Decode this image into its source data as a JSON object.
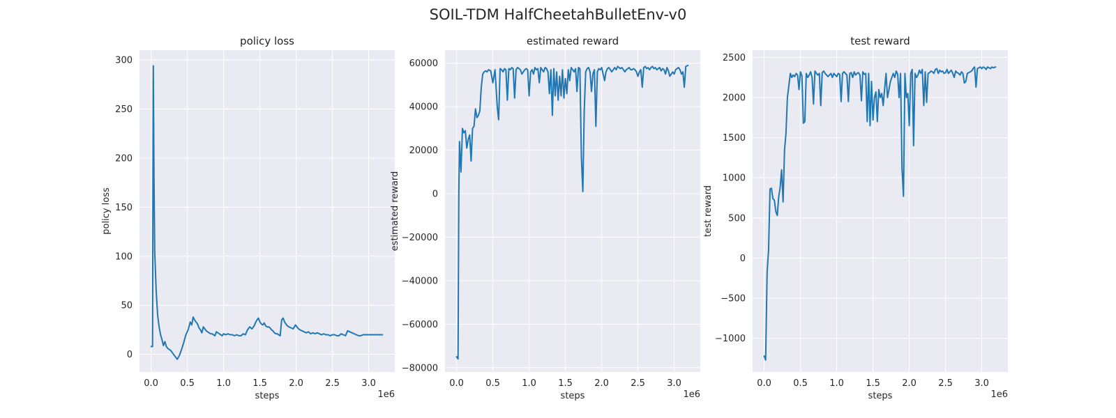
{
  "figure_title": "SOIL-TDM HalfCheetahBulletEnv-v0",
  "line_color": "#1f77b4",
  "chart_data": [
    {
      "type": "line",
      "title": "policy loss",
      "xlabel": "steps",
      "ylabel": "policy loss",
      "x_offset_label": "1e6",
      "xlim": [
        -0.16,
        3.36
      ],
      "ylim": [
        -18,
        310
      ],
      "xticks": [
        0.0,
        0.5,
        1.0,
        1.5,
        2.0,
        2.5,
        3.0
      ],
      "xtick_labels": [
        "0.0",
        "0.5",
        "1.0",
        "1.5",
        "2.0",
        "2.5",
        "3.0"
      ],
      "yticks": [
        0,
        50,
        100,
        150,
        200,
        250,
        300
      ],
      "ytick_labels": [
        "0",
        "50",
        "100",
        "150",
        "200",
        "250",
        "300"
      ],
      "grid": true,
      "series": [
        {
          "x": [
            0.0,
            0.02,
            0.03,
            0.04,
            0.05,
            0.07,
            0.09,
            0.11,
            0.13,
            0.15,
            0.17,
            0.19,
            0.21,
            0.23,
            0.25,
            0.27,
            0.3,
            0.33,
            0.36,
            0.39,
            0.42,
            0.45,
            0.48,
            0.51,
            0.54,
            0.56,
            0.58,
            0.6,
            0.62,
            0.64,
            0.66,
            0.68,
            0.7,
            0.72,
            0.74,
            0.76,
            0.78,
            0.8,
            0.82,
            0.84,
            0.86,
            0.88,
            0.9,
            0.92,
            0.94,
            0.96,
            0.98,
            1.0,
            1.03,
            1.06,
            1.09,
            1.12,
            1.15,
            1.18,
            1.21,
            1.24,
            1.27,
            1.3,
            1.33,
            1.36,
            1.39,
            1.42,
            1.45,
            1.48,
            1.5,
            1.52,
            1.54,
            1.56,
            1.58,
            1.6,
            1.62,
            1.64,
            1.66,
            1.68,
            1.7,
            1.72,
            1.74,
            1.76,
            1.78,
            1.8,
            1.82,
            1.84,
            1.86,
            1.88,
            1.9,
            1.93,
            1.96,
            1.99,
            2.02,
            2.05,
            2.08,
            2.11,
            2.14,
            2.17,
            2.2,
            2.23,
            2.26,
            2.29,
            2.32,
            2.35,
            2.38,
            2.41,
            2.44,
            2.47,
            2.5,
            2.53,
            2.56,
            2.59,
            2.62,
            2.65,
            2.68,
            2.71,
            2.74,
            2.77,
            2.8,
            2.83,
            2.86,
            2.89,
            2.92,
            2.95,
            2.98,
            3.01,
            3.04,
            3.07,
            3.1,
            3.13,
            3.16,
            3.19
          ],
          "y": [
            8,
            8,
            294,
            180,
            105,
            65,
            40,
            28,
            20,
            15,
            9,
            13,
            8,
            6,
            5,
            4,
            1,
            -2,
            -5,
            -1,
            5,
            12,
            20,
            25,
            33,
            30,
            38,
            35,
            33,
            31,
            27,
            25,
            22,
            28,
            26,
            24,
            23,
            22,
            21,
            21,
            20,
            19,
            23,
            22,
            21,
            20,
            19,
            21,
            20,
            21,
            20,
            20,
            19,
            20,
            19,
            19,
            21,
            20,
            25,
            28,
            26,
            29,
            34,
            37,
            33,
            31,
            30,
            32,
            29,
            28,
            28,
            27,
            25,
            24,
            22,
            21,
            21,
            20,
            19,
            35,
            37,
            33,
            31,
            29,
            28,
            27,
            26,
            30,
            27,
            25,
            24,
            23,
            22,
            23,
            21,
            22,
            21,
            22,
            21,
            20,
            21,
            20,
            20,
            19,
            20,
            20,
            19,
            19,
            21,
            20,
            19,
            24,
            23,
            22,
            21,
            20,
            19,
            19,
            20,
            20,
            20,
            20,
            20,
            20,
            20,
            20,
            20,
            20
          ]
        }
      ]
    },
    {
      "type": "line",
      "title": "estimated reward",
      "xlabel": "steps",
      "ylabel": "estimated reward",
      "x_offset_label": "1e6",
      "xlim": [
        -0.16,
        3.36
      ],
      "ylim": [
        -82000,
        66000
      ],
      "xticks": [
        0.0,
        0.5,
        1.0,
        1.5,
        2.0,
        2.5,
        3.0
      ],
      "xtick_labels": [
        "0.0",
        "0.5",
        "1.0",
        "1.5",
        "2.0",
        "2.5",
        "3.0"
      ],
      "yticks": [
        -80000,
        -60000,
        -40000,
        -20000,
        0,
        20000,
        40000,
        60000
      ],
      "ytick_labels": [
        "−80000",
        "−60000",
        "−40000",
        "−20000",
        "0",
        "20000",
        "40000",
        "60000"
      ],
      "grid": true,
      "series": [
        {
          "x": [
            0.0,
            0.02,
            0.03,
            0.04,
            0.06,
            0.08,
            0.1,
            0.12,
            0.14,
            0.16,
            0.18,
            0.2,
            0.22,
            0.24,
            0.26,
            0.28,
            0.3,
            0.32,
            0.34,
            0.36,
            0.38,
            0.4,
            0.42,
            0.44,
            0.47,
            0.5,
            0.53,
            0.56,
            0.58,
            0.6,
            0.62,
            0.64,
            0.66,
            0.68,
            0.7,
            0.72,
            0.74,
            0.76,
            0.78,
            0.8,
            0.82,
            0.84,
            0.86,
            0.88,
            0.9,
            0.92,
            0.94,
            0.96,
            0.98,
            1.0,
            1.02,
            1.04,
            1.06,
            1.08,
            1.1,
            1.12,
            1.14,
            1.16,
            1.18,
            1.2,
            1.22,
            1.24,
            1.26,
            1.28,
            1.3,
            1.32,
            1.34,
            1.36,
            1.38,
            1.4,
            1.42,
            1.44,
            1.46,
            1.48,
            1.5,
            1.52,
            1.54,
            1.56,
            1.58,
            1.6,
            1.62,
            1.64,
            1.66,
            1.68,
            1.7,
            1.72,
            1.74,
            1.76,
            1.78,
            1.8,
            1.82,
            1.84,
            1.86,
            1.88,
            1.9,
            1.92,
            1.94,
            1.96,
            1.98,
            2.0,
            2.02,
            2.04,
            2.06,
            2.08,
            2.1,
            2.12,
            2.14,
            2.16,
            2.18,
            2.2,
            2.22,
            2.24,
            2.26,
            2.28,
            2.3,
            2.32,
            2.34,
            2.36,
            2.38,
            2.4,
            2.42,
            2.44,
            2.46,
            2.48,
            2.5,
            2.52,
            2.54,
            2.56,
            2.58,
            2.6,
            2.62,
            2.64,
            2.66,
            2.68,
            2.7,
            2.72,
            2.74,
            2.76,
            2.78,
            2.8,
            2.82,
            2.84,
            2.86,
            2.88,
            2.9,
            2.92,
            2.94,
            2.96,
            2.98,
            3.0,
            3.02,
            3.04,
            3.06,
            3.08,
            3.1,
            3.12,
            3.14,
            3.16,
            3.19
          ],
          "y": [
            -75000,
            -76000,
            0,
            24000,
            10000,
            30000,
            28000,
            29000,
            21000,
            25000,
            27000,
            15000,
            30000,
            31000,
            39000,
            35000,
            36000,
            38000,
            49000,
            55000,
            56000,
            56500,
            56000,
            57000,
            56500,
            51000,
            57000,
            40000,
            34000,
            57500,
            57000,
            56000,
            57500,
            57000,
            43000,
            57500,
            57000,
            58000,
            57500,
            44000,
            57000,
            58000,
            57500,
            57000,
            55000,
            56000,
            57000,
            57500,
            57000,
            45000,
            56000,
            57000,
            55000,
            58000,
            57000,
            57500,
            51000,
            58000,
            57000,
            56000,
            58000,
            57500,
            56000,
            46000,
            57000,
            36000,
            57500,
            45000,
            56000,
            43000,
            54000,
            45000,
            57000,
            44000,
            53000,
            46000,
            57000,
            52000,
            58000,
            57000,
            56000,
            57500,
            47000,
            58000,
            57500,
            17000,
            1000,
            38000,
            56000,
            57500,
            58000,
            56000,
            47000,
            55000,
            57000,
            31000,
            56000,
            57500,
            57000,
            58000,
            55000,
            52000,
            56000,
            57500,
            58000,
            57000,
            56000,
            57000,
            58000,
            57000,
            58500,
            58000,
            57500,
            58000,
            57000,
            56000,
            57000,
            57500,
            58000,
            57000,
            57000,
            57500,
            57000,
            56000,
            54000,
            56000,
            57000,
            49000,
            58000,
            58500,
            57500,
            58000,
            57000,
            58000,
            58500,
            57500,
            58000,
            57000,
            57500,
            58000,
            56500,
            57500,
            57000,
            55000,
            58000,
            56500,
            54000,
            55000,
            56000,
            55000,
            57000,
            57500,
            58000,
            57000,
            55000,
            56000,
            49000,
            58500,
            59000
          ]
        }
      ]
    },
    {
      "type": "line",
      "title": "test reward",
      "xlabel": "steps",
      "ylabel": "test reward",
      "x_offset_label": "1e6",
      "xlim": [
        -0.16,
        3.36
      ],
      "ylim": [
        -1420,
        2590
      ],
      "xticks": [
        0.0,
        0.5,
        1.0,
        1.5,
        2.0,
        2.5,
        3.0
      ],
      "xtick_labels": [
        "0.0",
        "0.5",
        "1.0",
        "1.5",
        "2.0",
        "2.5",
        "3.0"
      ],
      "yticks": [
        -1000,
        -500,
        0,
        500,
        1000,
        1500,
        2000,
        2500
      ],
      "ytick_labels": [
        "−1000",
        "−500",
        "0",
        "500",
        "1000",
        "1500",
        "2000",
        "2500"
      ],
      "grid": true,
      "series": [
        {
          "x": [
            0.0,
            0.02,
            0.04,
            0.06,
            0.08,
            0.1,
            0.12,
            0.14,
            0.16,
            0.18,
            0.2,
            0.22,
            0.24,
            0.26,
            0.28,
            0.3,
            0.32,
            0.34,
            0.36,
            0.38,
            0.4,
            0.42,
            0.44,
            0.46,
            0.48,
            0.5,
            0.52,
            0.54,
            0.56,
            0.58,
            0.6,
            0.62,
            0.64,
            0.66,
            0.68,
            0.7,
            0.72,
            0.74,
            0.76,
            0.78,
            0.8,
            0.82,
            0.84,
            0.86,
            0.88,
            0.9,
            0.92,
            0.94,
            0.96,
            0.98,
            1.0,
            1.02,
            1.04,
            1.06,
            1.08,
            1.1,
            1.12,
            1.14,
            1.16,
            1.18,
            1.2,
            1.22,
            1.24,
            1.26,
            1.28,
            1.3,
            1.32,
            1.34,
            1.36,
            1.38,
            1.4,
            1.42,
            1.44,
            1.46,
            1.48,
            1.5,
            1.52,
            1.54,
            1.56,
            1.58,
            1.6,
            1.62,
            1.64,
            1.66,
            1.68,
            1.7,
            1.72,
            1.74,
            1.76,
            1.78,
            1.8,
            1.82,
            1.84,
            1.86,
            1.88,
            1.9,
            1.92,
            1.94,
            1.96,
            1.98,
            2.0,
            2.02,
            2.04,
            2.06,
            2.08,
            2.1,
            2.12,
            2.14,
            2.16,
            2.18,
            2.2,
            2.22,
            2.24,
            2.26,
            2.28,
            2.3,
            2.32,
            2.34,
            2.36,
            2.38,
            2.4,
            2.42,
            2.44,
            2.46,
            2.48,
            2.5,
            2.52,
            2.54,
            2.56,
            2.58,
            2.6,
            2.62,
            2.64,
            2.66,
            2.68,
            2.7,
            2.72,
            2.74,
            2.76,
            2.78,
            2.8,
            2.82,
            2.84,
            2.86,
            2.88,
            2.9,
            2.92,
            2.94,
            2.96,
            2.98,
            3.0,
            3.02,
            3.04,
            3.06,
            3.08,
            3.1,
            3.12,
            3.14,
            3.16,
            3.19
          ],
          "y": [
            -1220,
            -1270,
            -180,
            100,
            860,
            870,
            740,
            720,
            580,
            530,
            760,
            880,
            1100,
            700,
            1350,
            1550,
            2000,
            2150,
            2300,
            2250,
            2280,
            2260,
            2300,
            2280,
            2100,
            2320,
            2270,
            1680,
            1700,
            2300,
            2250,
            2280,
            2320,
            2250,
            1920,
            2330,
            2300,
            2280,
            2300,
            1900,
            2310,
            2330,
            2300,
            2280,
            2260,
            2280,
            2300,
            2250,
            2300,
            2280,
            2260,
            2300,
            2290,
            1950,
            2300,
            2320,
            2300,
            2280,
            1950,
            2300,
            2310,
            2250,
            2320,
            2280,
            2300,
            2310,
            2280,
            1960,
            2320,
            2290,
            2300,
            1700,
            2300,
            1650,
            2200,
            1720,
            2000,
            2070,
            1700,
            2100,
            2000,
            2050,
            1900,
            2100,
            2300,
            2000,
            2100,
            2200,
            2250,
            2300,
            2250,
            2330,
            2290,
            2000,
            2300,
            1120,
            770,
            2300,
            2000,
            2050,
            1650,
            2300,
            2350,
            1400,
            2300,
            2250,
            2280,
            2340,
            2300,
            2350,
            1900,
            2320,
            1940,
            2300,
            2310,
            2330,
            2320,
            2300,
            2350,
            2360,
            2300,
            2340,
            2320,
            2330,
            2300,
            2310,
            2350,
            2300,
            2320,
            2340,
            2300,
            2250,
            2330,
            2310,
            2300,
            2280,
            2320,
            2300,
            2180,
            2200,
            2300,
            2310,
            2320,
            2330,
            2360,
            2380,
            2130,
            2360,
            2370,
            2380,
            2360,
            2380,
            2370,
            2350,
            2380,
            2370,
            2360,
            2380,
            2370,
            2380
          ]
        }
      ]
    }
  ]
}
